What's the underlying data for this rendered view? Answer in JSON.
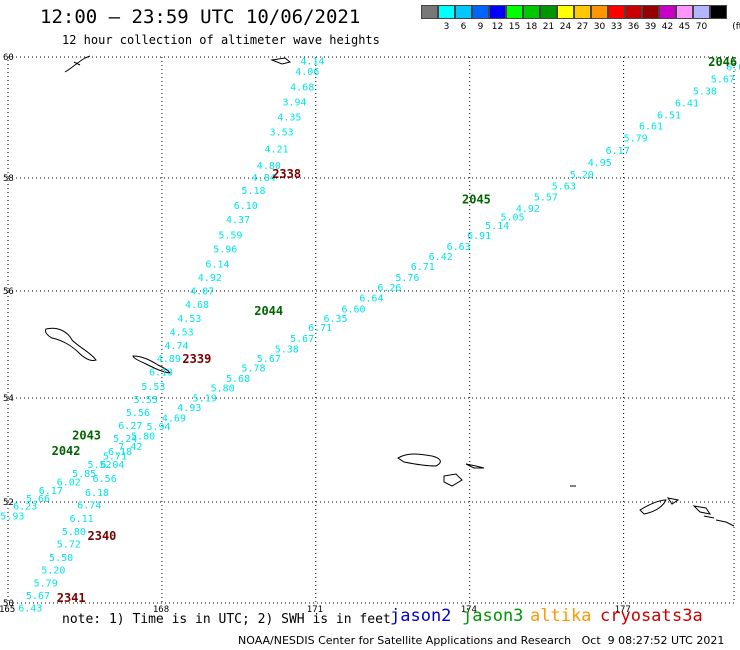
{
  "header": {
    "title": "12:00 – 23:59 UTC 10/06/2021",
    "subtitle": "12 hour collection of altimeter wave heights"
  },
  "legend": {
    "colors": [
      "#787878",
      "#00ffff",
      "#00c8ff",
      "#0064ff",
      "#0000ff",
      "#00ff00",
      "#00c800",
      "#009600",
      "#ffff00",
      "#ffc800",
      "#ff9600",
      "#ff0000",
      "#c80000",
      "#960000",
      "#c800c8",
      "#ff96ff",
      "#b4b4ff",
      "#000000"
    ],
    "labels": [
      "3",
      "6",
      "9",
      "12",
      "15",
      "18",
      "21",
      "24",
      "27",
      "30",
      "33",
      "36",
      "39",
      "42",
      "45",
      "70"
    ],
    "unit": "(ft)"
  },
  "map": {
    "lat_ticks": [
      "60",
      "58",
      "56",
      "54",
      "52",
      "50"
    ],
    "lon_ticks": [
      "165",
      "168",
      "171",
      "174",
      "177"
    ],
    "lon_range": [
      165,
      179.5
    ],
    "lat_range": [
      50,
      60
    ]
  },
  "tracks": [
    {
      "sat": "cryosat",
      "color": "#00e6e6",
      "labels": [
        {
          "lon": 170.7,
          "lat": 59.88,
          "t": "4.14"
        },
        {
          "lon": 170.6,
          "lat": 59.7,
          "t": "4.06"
        },
        {
          "lon": 170.5,
          "lat": 59.45,
          "t": "4.68"
        },
        {
          "lon": 170.35,
          "lat": 59.2,
          "t": "3.94"
        },
        {
          "lon": 170.25,
          "lat": 58.95,
          "t": "4.35"
        },
        {
          "lon": 170.1,
          "lat": 58.7,
          "t": "3.53"
        },
        {
          "lon": 170.0,
          "lat": 58.42,
          "t": "4.21"
        },
        {
          "lon": 169.85,
          "lat": 58.15,
          "t": "4.80"
        },
        {
          "lon": 169.75,
          "lat": 57.95,
          "t": "4.84"
        },
        {
          "lon": 169.55,
          "lat": 57.72,
          "t": "5.18"
        },
        {
          "lon": 169.4,
          "lat": 57.45,
          "t": "6.10"
        },
        {
          "lon": 169.25,
          "lat": 57.2,
          "t": "4.37"
        },
        {
          "lon": 169.1,
          "lat": 56.93,
          "t": "5.59"
        },
        {
          "lon": 169.0,
          "lat": 56.68,
          "t": "5.96"
        },
        {
          "lon": 168.85,
          "lat": 56.42,
          "t": "6.14"
        },
        {
          "lon": 168.7,
          "lat": 56.18,
          "t": "4.92"
        },
        {
          "lon": 168.55,
          "lat": 55.93,
          "t": "4.07"
        },
        {
          "lon": 168.45,
          "lat": 55.68,
          "t": "4.68"
        },
        {
          "lon": 168.3,
          "lat": 55.42,
          "t": "4.53"
        },
        {
          "lon": 168.15,
          "lat": 55.17,
          "t": "4.53"
        },
        {
          "lon": 168.05,
          "lat": 54.92,
          "t": "4.74"
        },
        {
          "lon": 167.9,
          "lat": 54.67,
          "t": "4.89"
        },
        {
          "lon": 167.75,
          "lat": 54.42,
          "t": "6.13"
        },
        {
          "lon": 167.6,
          "lat": 54.15,
          "t": "5.53"
        },
        {
          "lon": 167.45,
          "lat": 53.9,
          "t": "5.55"
        },
        {
          "lon": 167.3,
          "lat": 53.65,
          "t": "5.56"
        },
        {
          "lon": 167.15,
          "lat": 53.4,
          "t": "6.27"
        },
        {
          "lon": 167.05,
          "lat": 53.15,
          "t": "5.24"
        },
        {
          "lon": 166.95,
          "lat": 52.9,
          "t": "6.18"
        },
        {
          "lon": 166.8,
          "lat": 52.65,
          "t": "6.04"
        },
        {
          "lon": 166.65,
          "lat": 52.38,
          "t": "6.56"
        },
        {
          "lon": 166.5,
          "lat": 52.12,
          "t": "6.18"
        },
        {
          "lon": 166.35,
          "lat": 51.87,
          "t": "6.74"
        },
        {
          "lon": 166.2,
          "lat": 51.6,
          "t": "6.11"
        },
        {
          "lon": 166.05,
          "lat": 51.35,
          "t": "5.80"
        },
        {
          "lon": 165.95,
          "lat": 51.1,
          "t": "5.72"
        },
        {
          "lon": 165.8,
          "lat": 50.83,
          "t": "5.50"
        },
        {
          "lon": 165.65,
          "lat": 50.58,
          "t": "5.20"
        },
        {
          "lon": 165.5,
          "lat": 50.33,
          "t": "5.79"
        },
        {
          "lon": 165.35,
          "lat": 50.08,
          "t": "5.67"
        },
        {
          "lon": 165.2,
          "lat": 49.83,
          "t": "6.43"
        }
      ]
    },
    {
      "sat": "jason3-A",
      "color": "#00e6e6",
      "labels": [
        {
          "lon": 179.3,
          "lat": 59.95,
          "t": "5.82"
        },
        {
          "lon": 179.0,
          "lat": 59.78,
          "t": "6.00"
        },
        {
          "lon": 178.7,
          "lat": 59.58,
          "t": "5.67"
        },
        {
          "lon": 178.35,
          "lat": 59.38,
          "t": "5.38"
        },
        {
          "lon": 178.0,
          "lat": 59.18,
          "t": "6.41"
        },
        {
          "lon": 177.65,
          "lat": 58.98,
          "t": "6.51"
        },
        {
          "lon": 177.3,
          "lat": 58.8,
          "t": "6.61"
        },
        {
          "lon": 177.0,
          "lat": 58.6,
          "t": "5.79"
        },
        {
          "lon": 176.65,
          "lat": 58.4,
          "t": "6.17"
        },
        {
          "lon": 176.3,
          "lat": 58.2,
          "t": "4.95"
        },
        {
          "lon": 175.95,
          "lat": 58.0,
          "t": "5.20"
        },
        {
          "lon": 175.6,
          "lat": 57.8,
          "t": "5.63"
        },
        {
          "lon": 175.25,
          "lat": 57.6,
          "t": "5.57"
        },
        {
          "lon": 174.9,
          "lat": 57.4,
          "t": "4.92"
        },
        {
          "lon": 174.6,
          "lat": 57.25,
          "t": "5.05"
        },
        {
          "lon": 174.3,
          "lat": 57.1,
          "t": "5.14"
        },
        {
          "lon": 173.95,
          "lat": 56.92,
          "t": "6.91"
        },
        {
          "lon": 173.55,
          "lat": 56.73,
          "t": "6.63"
        },
        {
          "lon": 173.2,
          "lat": 56.55,
          "t": "6.42"
        },
        {
          "lon": 172.85,
          "lat": 56.37,
          "t": "6.71"
        },
        {
          "lon": 172.55,
          "lat": 56.18,
          "t": "5.76"
        },
        {
          "lon": 172.2,
          "lat": 56.0,
          "t": "6.26"
        },
        {
          "lon": 171.85,
          "lat": 55.8,
          "t": "6.64"
        },
        {
          "lon": 171.5,
          "lat": 55.6,
          "t": "6.60"
        },
        {
          "lon": 171.15,
          "lat": 55.42,
          "t": "6.35"
        },
        {
          "lon": 170.85,
          "lat": 55.25,
          "t": "6.71"
        },
        {
          "lon": 170.5,
          "lat": 55.05,
          "t": "5.67"
        },
        {
          "lon": 170.2,
          "lat": 54.85,
          "t": "5.38"
        },
        {
          "lon": 169.85,
          "lat": 54.67,
          "t": "5.67"
        },
        {
          "lon": 169.55,
          "lat": 54.5,
          "t": "5.78"
        },
        {
          "lon": 169.25,
          "lat": 54.3,
          "t": "5.68"
        },
        {
          "lon": 168.95,
          "lat": 54.12,
          "t": "5.80"
        },
        {
          "lon": 168.6,
          "lat": 53.93,
          "t": "5.19"
        },
        {
          "lon": 168.3,
          "lat": 53.75,
          "t": "4.93"
        },
        {
          "lon": 168.0,
          "lat": 53.55,
          "t": "4.69"
        },
        {
          "lon": 167.7,
          "lat": 53.38,
          "t": "5.94"
        },
        {
          "lon": 167.4,
          "lat": 53.2,
          "t": "5.80"
        },
        {
          "lon": 167.15,
          "lat": 53.0,
          "t": "7.42"
        },
        {
          "lon": 166.85,
          "lat": 52.82,
          "t": "5.71"
        },
        {
          "lon": 166.55,
          "lat": 52.65,
          "t": "5.52"
        },
        {
          "lon": 166.25,
          "lat": 52.48,
          "t": "5.85"
        },
        {
          "lon": 165.95,
          "lat": 52.32,
          "t": "6.02"
        },
        {
          "lon": 165.6,
          "lat": 52.15,
          "t": "6.17"
        },
        {
          "lon": 165.35,
          "lat": 52.0,
          "t": "5.66"
        },
        {
          "lon": 165.1,
          "lat": 51.85,
          "t": "6.23"
        },
        {
          "lon": 164.85,
          "lat": 51.65,
          "t": "5.93"
        }
      ]
    }
  ],
  "time_labels": [
    {
      "lon": 170.15,
      "lat": 58.0,
      "t": "2338",
      "color": "#7a0000"
    },
    {
      "lon": 168.4,
      "lat": 54.65,
      "t": "2339",
      "color": "#7a0000"
    },
    {
      "lon": 166.55,
      "lat": 51.25,
      "t": "2340",
      "color": "#7a0000"
    },
    {
      "lon": 165.95,
      "lat": 50.02,
      "t": "2341",
      "color": "#7a0000"
    },
    {
      "lon": 178.65,
      "lat": 59.85,
      "t": "2046",
      "color": "#006400"
    },
    {
      "lon": 173.85,
      "lat": 57.55,
      "t": "2045",
      "color": "#006400"
    },
    {
      "lon": 169.8,
      "lat": 55.55,
      "t": "2044",
      "color": "#006400"
    },
    {
      "lon": 166.25,
      "lat": 53.2,
      "t": "2043",
      "color": "#006400"
    },
    {
      "lon": 165.85,
      "lat": 52.9,
      "t": "2042",
      "color": "#006400"
    }
  ],
  "footer": {
    "note": "note: 1) Time is in UTC; 2) SWH is in feet",
    "satellites": [
      {
        "name": "jason2",
        "color": "#0000cc"
      },
      {
        "name": "jason3",
        "color": "#009600"
      },
      {
        "name": "altika",
        "color": "#ff9600"
      },
      {
        "name": "cryosat",
        "color": "#cc0000"
      },
      {
        "name": "s3a",
        "color": "#cc0000"
      }
    ],
    "credit": "NOAA/NESDIS Center for Satellite Applications and Research   Oct  9 08:27:52 UTC 2021"
  }
}
